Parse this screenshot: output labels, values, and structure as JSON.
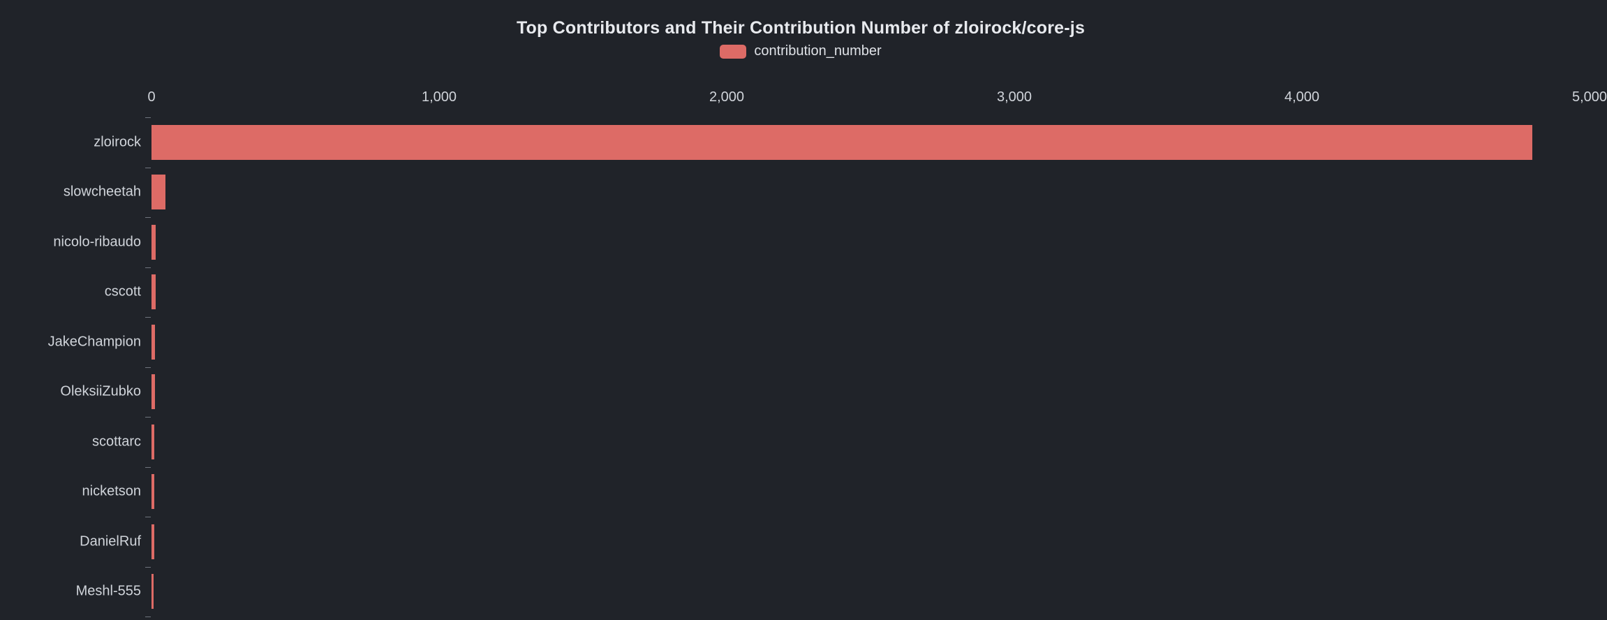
{
  "colors": {
    "background": "#202329",
    "bar": "#dd6b66",
    "title_text": "#e8eaee",
    "axis_text": "#d0d4da",
    "tick_line": "#6f747d"
  },
  "chart_data": {
    "type": "bar",
    "orientation": "horizontal",
    "title": "Top Contributors and Their Contribution Number of zloirock/core-js",
    "legend": {
      "position": "top-center",
      "entries": [
        "contribution_number"
      ]
    },
    "series_name": "contribution_number",
    "categories": [
      "zloirock",
      "slowcheetah",
      "nicolo-ribaudo",
      "cscott",
      "JakeChampion",
      "OleksiiZubko",
      "scottarc",
      "nicketson",
      "DanielRuf",
      "Meshl-555"
    ],
    "values": [
      4800,
      48,
      15,
      14,
      12,
      11,
      10,
      9,
      9,
      8
    ],
    "xlabel": "",
    "ylabel": "",
    "xlim": [
      0,
      5000
    ],
    "x_axis_position": "top",
    "x_ticks": [
      {
        "value": 0,
        "label": "0"
      },
      {
        "value": 1000,
        "label": "1,000"
      },
      {
        "value": 2000,
        "label": "2,000"
      },
      {
        "value": 3000,
        "label": "3,000"
      },
      {
        "value": 4000,
        "label": "4,000"
      },
      {
        "value": 5000,
        "label": "5,000"
      }
    ],
    "grid": false
  }
}
